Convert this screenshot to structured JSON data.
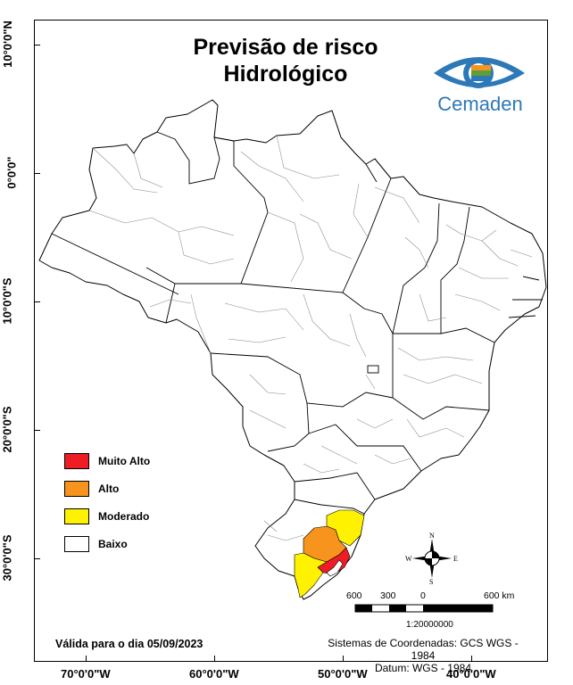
{
  "title_line1": "Previsão de risco",
  "title_line2": "Hidrológico",
  "logo": {
    "brand_text": "Cemaden",
    "icon": "cemaden-eye-logo"
  },
  "grid": {
    "latitudes": [
      "10°0'0\"N",
      "0°0'0\"",
      "10°0'0\"S",
      "20°0'0\"S",
      "30°0'0\"S"
    ],
    "longitudes": [
      "70°0'0\"W",
      "60°0'0\"W",
      "50°0'0\"W",
      "40°0'0\"W"
    ]
  },
  "legend": [
    {
      "label": "Muito Alto",
      "color": "#ee1c24"
    },
    {
      "label": "Alto",
      "color": "#f7941d"
    },
    {
      "label": "Moderado",
      "color": "#fff200"
    },
    {
      "label": "Baixo",
      "color": "#ffffff"
    }
  ],
  "valid_date": "Válida para o dia 05/09/2023",
  "crs_line1": "Sistemas de Coordenadas: GCS WGS - 1984",
  "crs_line2": "Datum: WGS - 1984",
  "scale": {
    "labels": [
      "600",
      "300",
      "0",
      "600 km"
    ],
    "ratio": "1:20000000"
  },
  "compass": {
    "n": "N",
    "s": "S",
    "e": "E",
    "w": "W"
  },
  "risk_regions": [
    {
      "name": "Rio Grande do Sul south coast",
      "level": "Moderado"
    },
    {
      "name": "Rio Grande do Sul central-east",
      "level": "Alto"
    },
    {
      "name": "Rio Grande do Sul Porto Alegre area",
      "level": "Muito Alto"
    },
    {
      "name": "Santa Catarina south",
      "level": "Moderado"
    }
  ]
}
